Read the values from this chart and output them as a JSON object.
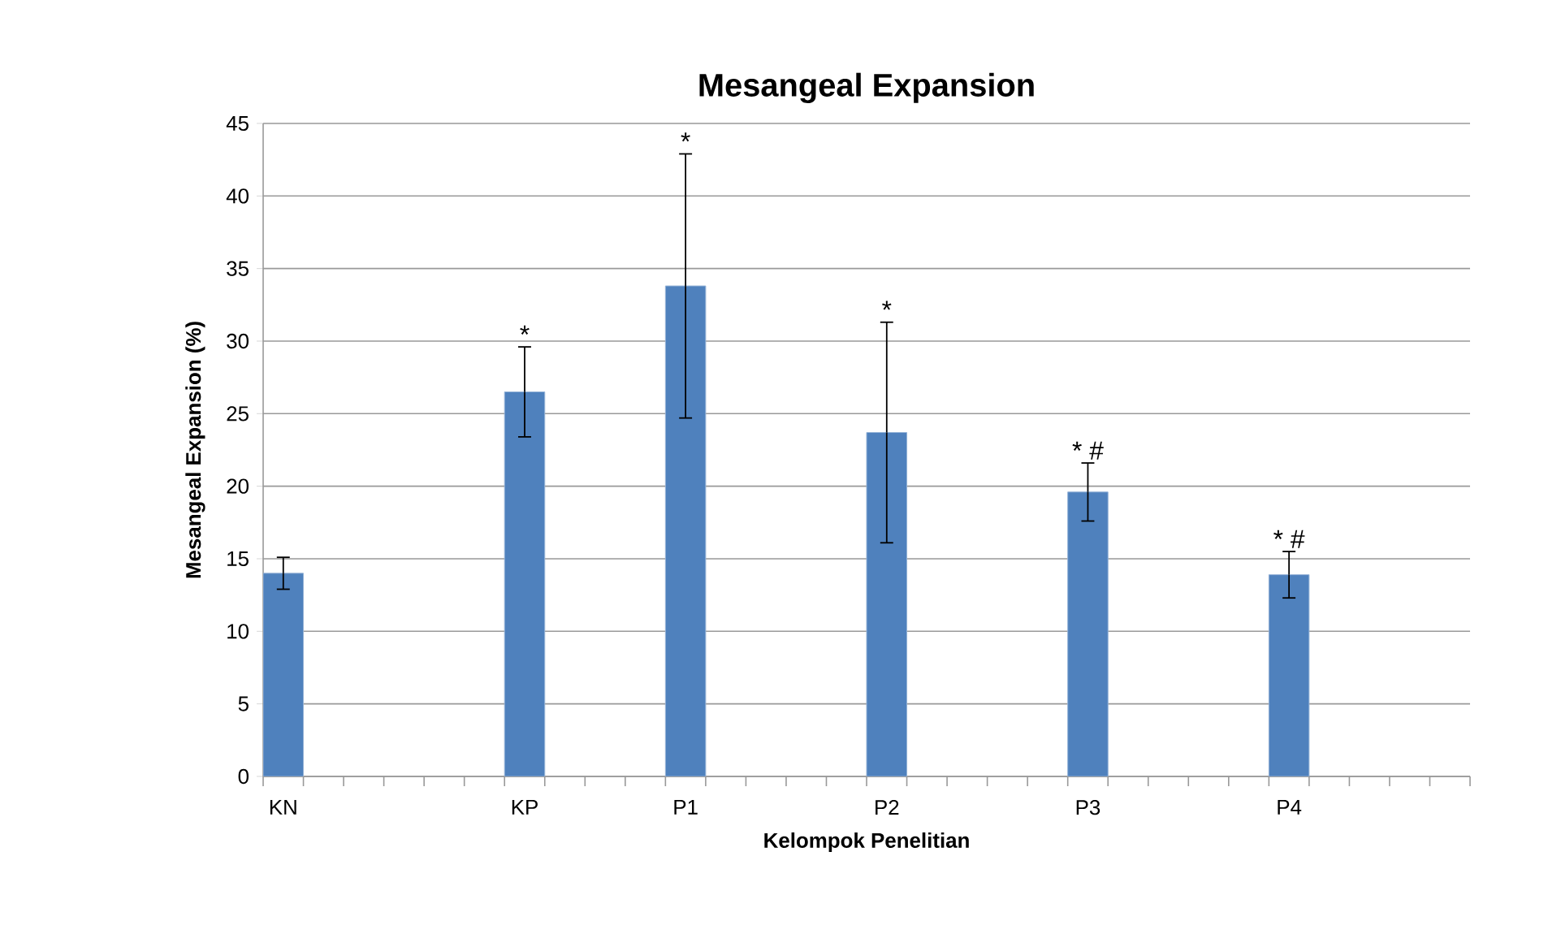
{
  "chart_data": {
    "type": "bar",
    "title": "Mesangeal Expansion",
    "xlabel": "Kelompok Penelitian",
    "ylabel": "Mesangeal Expansion (%)",
    "categories": [
      "KN",
      null,
      null,
      null,
      null,
      null,
      "KP",
      null,
      null,
      null,
      "P1",
      null,
      null,
      null,
      null,
      "P2",
      null,
      null,
      null,
      null,
      "P3",
      null,
      null,
      null,
      null,
      "P4",
      null,
      null,
      null,
      null
    ],
    "values": [
      14.0,
      null,
      null,
      null,
      null,
      null,
      26.5,
      null,
      null,
      null,
      33.8,
      null,
      null,
      null,
      null,
      23.7,
      null,
      null,
      null,
      null,
      19.6,
      null,
      null,
      null,
      null,
      13.9,
      null,
      null,
      null,
      null
    ],
    "errors": [
      1.1,
      null,
      null,
      null,
      null,
      null,
      3.1,
      null,
      null,
      null,
      9.1,
      null,
      null,
      null,
      null,
      7.6,
      null,
      null,
      null,
      null,
      2.0,
      null,
      null,
      null,
      null,
      1.6,
      null,
      null,
      null,
      null
    ],
    "color": "#4f81bd",
    "ylim": [
      0,
      45
    ],
    "yticks": [
      0,
      5,
      10,
      15,
      20,
      25,
      30,
      35,
      40,
      45
    ],
    "grid": "y",
    "annotations": [
      {
        "text": "*",
        "x": "KP",
        "y": 29.6
      },
      {
        "text": "*",
        "x": "P1",
        "y": 42.9
      },
      {
        "text": "*",
        "x": "P2",
        "y": 31.3
      },
      {
        "text": "* #",
        "x": "P3",
        "y": 21.6
      },
      {
        "text": "* #",
        "x": "P4",
        "y": 15.5
      }
    ]
  }
}
